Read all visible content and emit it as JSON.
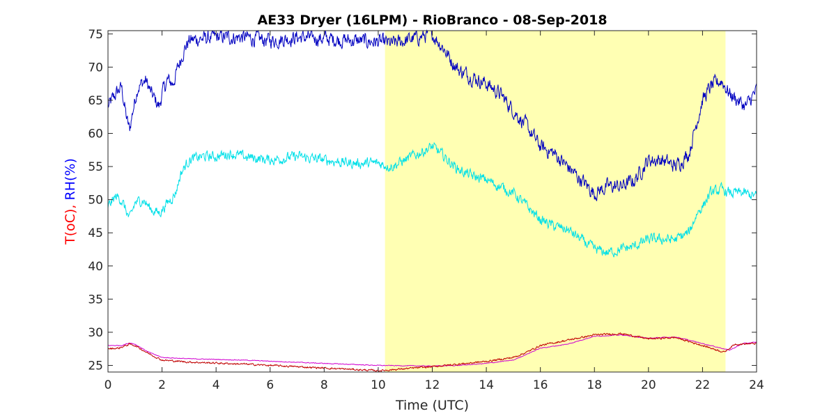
{
  "chart_data": {
    "type": "line",
    "title": "AE33 Dryer (16LPM)  - RioBranco - 08-Sep-2018",
    "xlabel": "Time (UTC)",
    "ylabel_parts": [
      {
        "text": "T(oC), ",
        "color": "#ff0000"
      },
      {
        "text": "RH(%)",
        "color": "#0000ff"
      }
    ],
    "xlim": [
      0,
      24
    ],
    "ylim": [
      24,
      75.5
    ],
    "xticks": [
      0,
      2,
      4,
      6,
      8,
      10,
      12,
      14,
      16,
      18,
      20,
      22,
      24
    ],
    "yticks": [
      25,
      30,
      35,
      40,
      45,
      50,
      55,
      60,
      65,
      70,
      75
    ],
    "grid": false,
    "shaded_region": {
      "x_start": 10.25,
      "x_end": 22.85,
      "color": "#ffffb3"
    },
    "series": [
      {
        "color": "#0000c0",
        "noise": 1.0,
        "points": [
          [
            0,
            64
          ],
          [
            0.3,
            66
          ],
          [
            0.5,
            67
          ],
          [
            0.7,
            62
          ],
          [
            0.8,
            60.5
          ],
          [
            0.9,
            63
          ],
          [
            1.1,
            67
          ],
          [
            1.4,
            68
          ],
          [
            1.6,
            66
          ],
          [
            1.9,
            64
          ],
          [
            2.0,
            66
          ],
          [
            2.2,
            68
          ],
          [
            2.4,
            67.5
          ],
          [
            2.6,
            70
          ],
          [
            2.8,
            72.5
          ],
          [
            3.0,
            74
          ],
          [
            3.3,
            74.2
          ],
          [
            4,
            74.5
          ],
          [
            5,
            74.5
          ],
          [
            6,
            74
          ],
          [
            7,
            74.5
          ],
          [
            8,
            74.3
          ],
          [
            9,
            74
          ],
          [
            10,
            73.8
          ],
          [
            10.5,
            73.5
          ],
          [
            11,
            74
          ],
          [
            12,
            75
          ],
          [
            12.4,
            73
          ],
          [
            12.7,
            71
          ],
          [
            13,
            69.5
          ],
          [
            13.5,
            68.5
          ],
          [
            14,
            67.5
          ],
          [
            14.5,
            66
          ],
          [
            15,
            63.5
          ],
          [
            15.5,
            61
          ],
          [
            16,
            58
          ],
          [
            16.5,
            57
          ],
          [
            17,
            55
          ],
          [
            17.5,
            53
          ],
          [
            18,
            51
          ],
          [
            18.5,
            52
          ],
          [
            19,
            52
          ],
          [
            19.5,
            53
          ],
          [
            20,
            56
          ],
          [
            20.5,
            56
          ],
          [
            21,
            55
          ],
          [
            21.5,
            57
          ],
          [
            21.8,
            62
          ],
          [
            22,
            65
          ],
          [
            22.3,
            67
          ],
          [
            22.7,
            68
          ],
          [
            23,
            66
          ],
          [
            23.3,
            65
          ],
          [
            23.6,
            64
          ],
          [
            24,
            66.5
          ]
        ]
      },
      {
        "color": "#00e0e8",
        "noise": 0.7,
        "points": [
          [
            0,
            49
          ],
          [
            0.3,
            50.5
          ],
          [
            0.5,
            50
          ],
          [
            0.7,
            48
          ],
          [
            0.8,
            47
          ],
          [
            1.0,
            49.5
          ],
          [
            1.3,
            50
          ],
          [
            1.6,
            48.5
          ],
          [
            1.9,
            48
          ],
          [
            2.1,
            49
          ],
          [
            2.3,
            50
          ],
          [
            2.5,
            51
          ],
          [
            2.7,
            54
          ],
          [
            3.0,
            56
          ],
          [
            3.5,
            56.5
          ],
          [
            4,
            56.5
          ],
          [
            4.5,
            57
          ],
          [
            5,
            56.5
          ],
          [
            6,
            56
          ],
          [
            7,
            56.5
          ],
          [
            8,
            56
          ],
          [
            9,
            55.5
          ],
          [
            10,
            55.5
          ],
          [
            10.5,
            55
          ],
          [
            11,
            56
          ],
          [
            12,
            58
          ],
          [
            12.3,
            57
          ],
          [
            12.7,
            55.5
          ],
          [
            13,
            54.5
          ],
          [
            13.5,
            53.5
          ],
          [
            14,
            53
          ],
          [
            14.5,
            52
          ],
          [
            15,
            51
          ],
          [
            15.5,
            49
          ],
          [
            16,
            47
          ],
          [
            16.5,
            46
          ],
          [
            17,
            45.5
          ],
          [
            17.5,
            44
          ],
          [
            18,
            42.5
          ],
          [
            18.5,
            42
          ],
          [
            19,
            42.5
          ],
          [
            19.5,
            43
          ],
          [
            20,
            44
          ],
          [
            20.5,
            44
          ],
          [
            21,
            44
          ],
          [
            21.5,
            45
          ],
          [
            21.8,
            48
          ],
          [
            22,
            49
          ],
          [
            22.3,
            51
          ],
          [
            22.7,
            51.5
          ],
          [
            23,
            51
          ],
          [
            23.5,
            51
          ],
          [
            24,
            50.5
          ]
        ]
      },
      {
        "color": "#d000d0",
        "noise": 0.05,
        "points": [
          [
            0,
            28
          ],
          [
            0.5,
            28
          ],
          [
            0.8,
            28.4
          ],
          [
            1.0,
            28.2
          ],
          [
            1.5,
            27
          ],
          [
            2,
            26.2
          ],
          [
            3,
            26
          ],
          [
            5,
            25.8
          ],
          [
            8,
            25.3
          ],
          [
            10,
            25
          ],
          [
            12,
            24.9
          ],
          [
            13,
            25
          ],
          [
            14,
            25.3
          ],
          [
            15,
            25.8
          ],
          [
            16,
            27.6
          ],
          [
            17,
            28.2
          ],
          [
            18,
            29.4
          ],
          [
            19,
            29.6
          ],
          [
            20,
            29.1
          ],
          [
            21,
            29.3
          ],
          [
            22,
            28.3
          ],
          [
            23,
            27.3
          ],
          [
            23.5,
            28.3
          ],
          [
            24,
            28.5
          ]
        ]
      },
      {
        "color": "#c00000",
        "noise": 0.12,
        "points": [
          [
            0,
            27.5
          ],
          [
            0.4,
            27.6
          ],
          [
            0.8,
            28.2
          ],
          [
            1.0,
            28
          ],
          [
            1.5,
            26.8
          ],
          [
            2,
            25.8
          ],
          [
            3,
            25.5
          ],
          [
            5,
            25.2
          ],
          [
            7,
            24.8
          ],
          [
            8,
            24.6
          ],
          [
            9,
            24.4
          ],
          [
            10,
            24.2
          ],
          [
            11,
            24.5
          ],
          [
            12,
            24.8
          ],
          [
            13,
            25.2
          ],
          [
            14,
            25.6
          ],
          [
            15,
            26.2
          ],
          [
            15.5,
            27
          ],
          [
            16,
            28
          ],
          [
            17,
            28.8
          ],
          [
            18,
            29.6
          ],
          [
            19,
            29.8
          ],
          [
            20,
            29
          ],
          [
            21,
            29.2
          ],
          [
            22,
            28
          ],
          [
            22.8,
            27
          ],
          [
            23.2,
            28.2
          ],
          [
            24,
            28.3
          ]
        ]
      }
    ]
  }
}
